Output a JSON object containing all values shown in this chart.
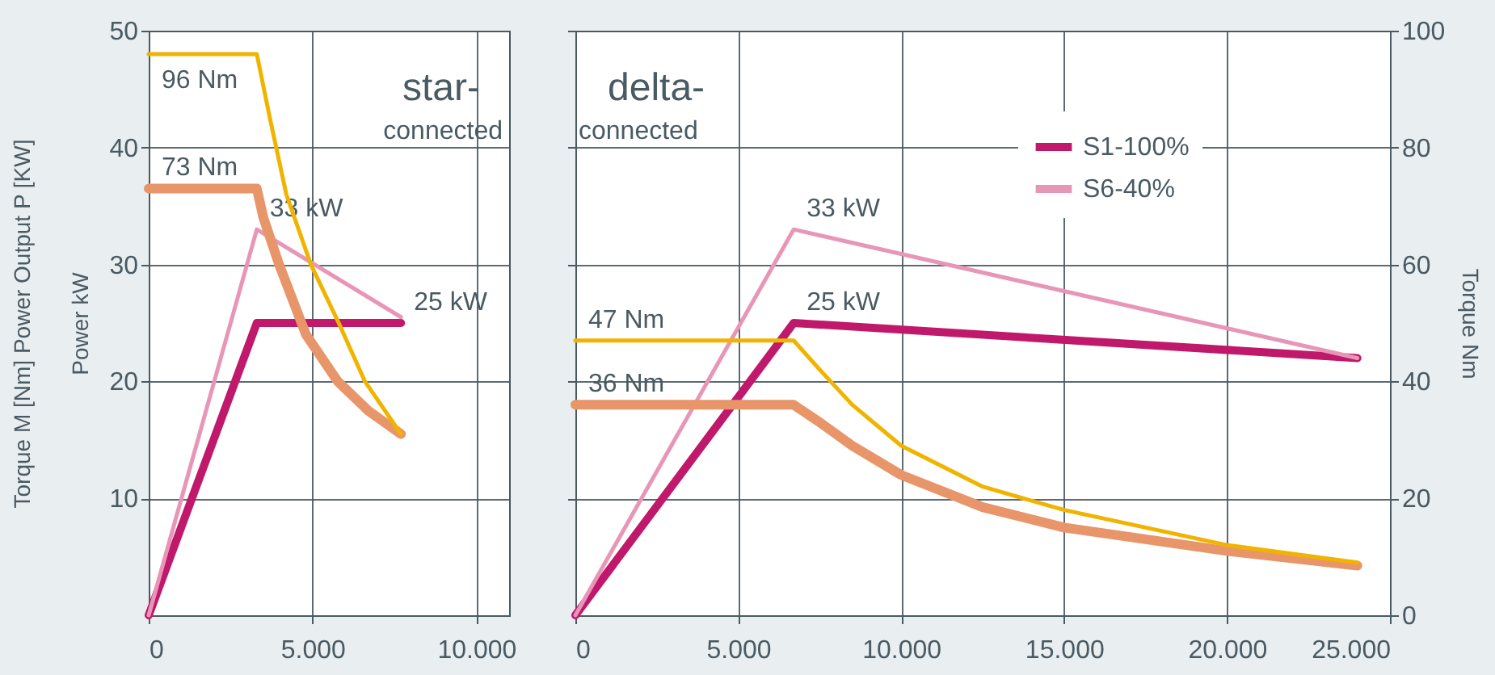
{
  "chart_data": [
    {
      "type": "line",
      "title": "star-",
      "subtitle": "connected",
      "ylabel": "Torque M  [Nm]    Power Output P  [KW]\nPower  kW",
      "xlim": [
        0,
        11000
      ],
      "xticks": [
        0,
        {
          "value": 5000,
          "label": "5.000"
        },
        {
          "value": 10000,
          "label": "10.000"
        }
      ],
      "ylim": [
        0,
        50
      ],
      "yticks": [
        10,
        20,
        30,
        40,
        50
      ],
      "y2lim": [
        0,
        100
      ],
      "grid": true,
      "series": [
        {
          "color": "#c0186a",
          "x": [
            0,
            3300,
            7700
          ],
          "values": [
            0,
            25,
            25
          ],
          "value_labels": [
            null,
            null,
            "25 kW"
          ]
        },
        {
          "color": "#e896b8",
          "x": [
            0,
            3300,
            7700
          ],
          "values": [
            0,
            33,
            25.5
          ],
          "value_labels": [
            null,
            "33 kW",
            null
          ]
        },
        {
          "color": "#e8956a",
          "axis": "y2",
          "x": [
            0,
            3300,
            3500,
            3980,
            4800,
            5770,
            6700,
            7700
          ],
          "values": [
            73,
            73,
            68,
            60,
            48,
            40,
            35,
            31
          ],
          "value_labels": [
            "73 Nm",
            null,
            null,
            null,
            null,
            null,
            null,
            null
          ]
        },
        {
          "color": "#f0b400",
          "axis": "y2",
          "x": [
            0,
            3300,
            3700,
            4200,
            4950,
            5800,
            6600,
            7700
          ],
          "values": [
            96,
            96,
            85,
            72,
            60,
            50,
            40,
            31
          ],
          "value_labels": [
            "96 Nm",
            null,
            null,
            null,
            null,
            null,
            null,
            null
          ]
        }
      ]
    },
    {
      "type": "line",
      "title": "delta-",
      "subtitle": "connected",
      "y2label": "Torque  Nm",
      "xlim": [
        0,
        25000
      ],
      "xticks": [
        0,
        {
          "value": 5000,
          "label": "5.000"
        },
        {
          "value": 10000,
          "label": "10.000"
        },
        {
          "value": 15000,
          "label": "15.000"
        },
        {
          "value": 20000,
          "label": "20.000"
        },
        {
          "value": 25000,
          "label": "25.000"
        }
      ],
      "ylim": [
        0,
        50
      ],
      "yticks": [
        {
          "value": 10,
          "label": null
        },
        {
          "value": 20,
          "label": null
        },
        {
          "value": 30,
          "label": null
        },
        {
          "value": 40,
          "label": null
        },
        {
          "value": 50,
          "label": null
        }
      ],
      "y2lim": [
        0,
        100
      ],
      "y2ticks": [
        0,
        20,
        40,
        60,
        80,
        100
      ],
      "grid": true,
      "legend": "top right",
      "series": [
        {
          "name": "S1-100%",
          "color": "#c0186a",
          "x": [
            0,
            6700,
            24000
          ],
          "values": [
            0,
            25,
            22
          ],
          "value_labels": [
            null,
            "25 kW",
            null
          ]
        },
        {
          "name": "S6-40%",
          "color": "#e896b8",
          "x": [
            0,
            6700,
            24000
          ],
          "values": [
            0,
            33,
            22
          ],
          "value_labels": [
            null,
            "33 kW",
            null
          ]
        },
        {
          "color": "#e8956a",
          "axis": "y2",
          "x": [
            0,
            6700,
            7500,
            8500,
            10000,
            12500,
            15000,
            20000,
            24000
          ],
          "values": [
            36,
            36,
            33,
            29,
            24,
            18.5,
            15,
            11,
            8.5
          ],
          "value_labels": [
            "36 Nm",
            null,
            null,
            null,
            null,
            null,
            null,
            null,
            null
          ]
        },
        {
          "color": "#f0b400",
          "axis": "y2",
          "x": [
            0,
            6700,
            7500,
            8500,
            10000,
            12500,
            15000,
            20000,
            24000
          ],
          "values": [
            47,
            47,
            42,
            36,
            29,
            22,
            18,
            12,
            9
          ],
          "value_labels": [
            "47 Nm",
            null,
            null,
            null,
            null,
            null,
            null,
            null,
            null
          ]
        }
      ]
    }
  ]
}
